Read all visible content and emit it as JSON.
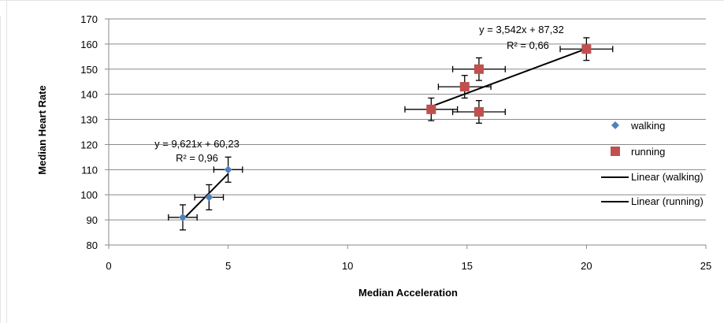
{
  "chart_data": {
    "type": "scatter",
    "xlabel": "Median Acceleration",
    "ylabel": "Median Heart Rate",
    "xlim": [
      0,
      25
    ],
    "ylim": [
      80,
      170
    ],
    "x_ticks": [
      0,
      5,
      10,
      15,
      20,
      25
    ],
    "y_ticks": [
      80,
      90,
      100,
      110,
      120,
      130,
      140,
      150,
      160,
      170
    ],
    "grid": "horizontal",
    "legend_position": "right",
    "series": [
      {
        "name": "walking",
        "marker": "diamond",
        "color": "#4f81bd",
        "points": [
          {
            "x": 3.1,
            "y": 91,
            "xerr": 0.6,
            "yerr": 5
          },
          {
            "x": 4.2,
            "y": 99,
            "xerr": 0.6,
            "yerr": 5
          },
          {
            "x": 5.0,
            "y": 110,
            "xerr": 0.6,
            "yerr": 5
          }
        ]
      },
      {
        "name": "running",
        "marker": "square",
        "color": "#c0504d",
        "points": [
          {
            "x": 13.5,
            "y": 134,
            "xerr": 1.1,
            "yerr": 4.5
          },
          {
            "x": 14.9,
            "y": 143,
            "xerr": 1.1,
            "yerr": 4.5
          },
          {
            "x": 15.5,
            "y": 150,
            "xerr": 1.1,
            "yerr": 4.5
          },
          {
            "x": 15.5,
            "y": 133,
            "xerr": 1.1,
            "yerr": 4.5
          },
          {
            "x": 20.0,
            "y": 158,
            "xerr": 1.1,
            "yerr": 4.5
          }
        ]
      }
    ],
    "trendlines": [
      {
        "name": "Linear (walking)",
        "slope": 9.621,
        "intercept": 60.23,
        "x_range": [
          3.1,
          5.0
        ],
        "equation_label": "y = 9,621x + 60,23",
        "r2_label": "R² = 0,96"
      },
      {
        "name": "Linear (running)",
        "slope": 3.542,
        "intercept": 87.32,
        "x_range": [
          13.5,
          20.0
        ],
        "equation_label": "y = 3,542x + 87,32",
        "r2_label": "R² = 0,66"
      }
    ],
    "legend": [
      "walking",
      "running",
      "Linear (walking)",
      "Linear (running)"
    ]
  }
}
